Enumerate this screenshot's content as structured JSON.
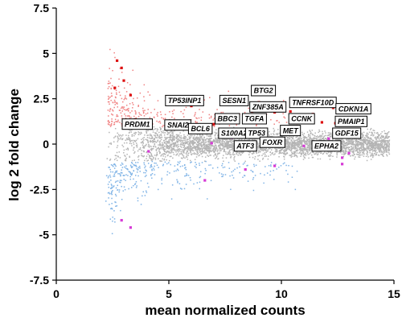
{
  "chart_data": {
    "type": "scatter",
    "title": "",
    "xlabel": "mean normalized counts",
    "ylabel": "log 2 fold change",
    "xlim": [
      0,
      15
    ],
    "ylim": [
      -7.5,
      7.5
    ],
    "xticks": [
      0,
      5,
      10,
      15
    ],
    "yticks": [
      7.5,
      5,
      2.5,
      0,
      -2.5,
      -5,
      -7.5
    ],
    "ytick_labels": [
      "7.5",
      "5",
      "2.5",
      "0",
      "-2.5",
      "-5",
      "-7.5"
    ],
    "grid": false,
    "colors": {
      "nonsignificant": "#b4b4b4",
      "up": "#f08080",
      "down": "#7fb3e6",
      "highlight_up": "#dd1111",
      "highlight_other": "#d63ad6"
    },
    "series": [
      {
        "color": "#dd1111",
        "x": [
          9.2,
          9.0,
          10.7,
          12.3,
          11.4,
          8.7,
          9.7,
          7.9,
          3.5,
          7.0,
          5.2,
          6.3,
          8.3,
          12.4,
          10.1,
          8.6,
          11.8,
          9.1,
          3.0,
          2.9,
          2.7,
          3.3,
          2.6,
          6.0,
          7.6,
          10.4
        ],
        "y": [
          2.95,
          2.3,
          2.3,
          2.0,
          1.65,
          1.8,
          1.75,
          1.6,
          1.35,
          1.1,
          1.25,
          1.05,
          0.65,
          1.15,
          0.95,
          0.45,
          1.2,
          1.4,
          3.5,
          4.2,
          4.6,
          2.7,
          3.1,
          2.1,
          1.5,
          1.8
        ]
      },
      {
        "color": "#d63ad6",
        "x": [
          7.8,
          9.3,
          11.0,
          12.2,
          12.1,
          13.0,
          6.9,
          12.7,
          4.1,
          8.4,
          9.7,
          6.6,
          12.7,
          2.9,
          3.3
        ],
        "y": [
          0.35,
          -0.1,
          -0.1,
          -0.05,
          0.3,
          -0.5,
          0.05,
          -0.75,
          -0.4,
          -1.4,
          -1.2,
          -2.0,
          -1.1,
          -4.2,
          -4.6
        ]
      }
    ],
    "annotations": [
      {
        "label": "BTG2",
        "x": 9.2,
        "y": 2.95
      },
      {
        "label": "TP53INP1",
        "x": 5.7,
        "y": 2.4
      },
      {
        "label": "SESN1",
        "x": 7.9,
        "y": 2.4
      },
      {
        "label": "TNFRSF10D",
        "x": 11.4,
        "y": 2.3
      },
      {
        "label": "ZNF385A",
        "x": 9.4,
        "y": 2.05
      },
      {
        "label": "CDKN1A",
        "x": 13.2,
        "y": 1.95
      },
      {
        "label": "CCNK",
        "x": 10.9,
        "y": 1.4
      },
      {
        "label": "BBC3",
        "x": 7.6,
        "y": 1.4
      },
      {
        "label": "TGFA",
        "x": 8.8,
        "y": 1.4
      },
      {
        "label": "PRDM1",
        "x": 3.6,
        "y": 1.1
      },
      {
        "label": "PMAIP1",
        "x": 13.1,
        "y": 1.25
      },
      {
        "label": "SNAI2",
        "x": 5.4,
        "y": 1.05
      },
      {
        "label": "BCL6",
        "x": 6.4,
        "y": 0.85
      },
      {
        "label": "S100A2",
        "x": 7.9,
        "y": 0.6
      },
      {
        "label": "TP53",
        "x": 8.9,
        "y": 0.6
      },
      {
        "label": "MET",
        "x": 10.4,
        "y": 0.75
      },
      {
        "label": "GDF15",
        "x": 12.9,
        "y": 0.6
      },
      {
        "label": "FOXR",
        "x": 9.6,
        "y": 0.1
      },
      {
        "label": "ATF3",
        "x": 8.4,
        "y": -0.1
      },
      {
        "label": "EPHA2",
        "x": 12.0,
        "y": -0.1
      }
    ]
  }
}
